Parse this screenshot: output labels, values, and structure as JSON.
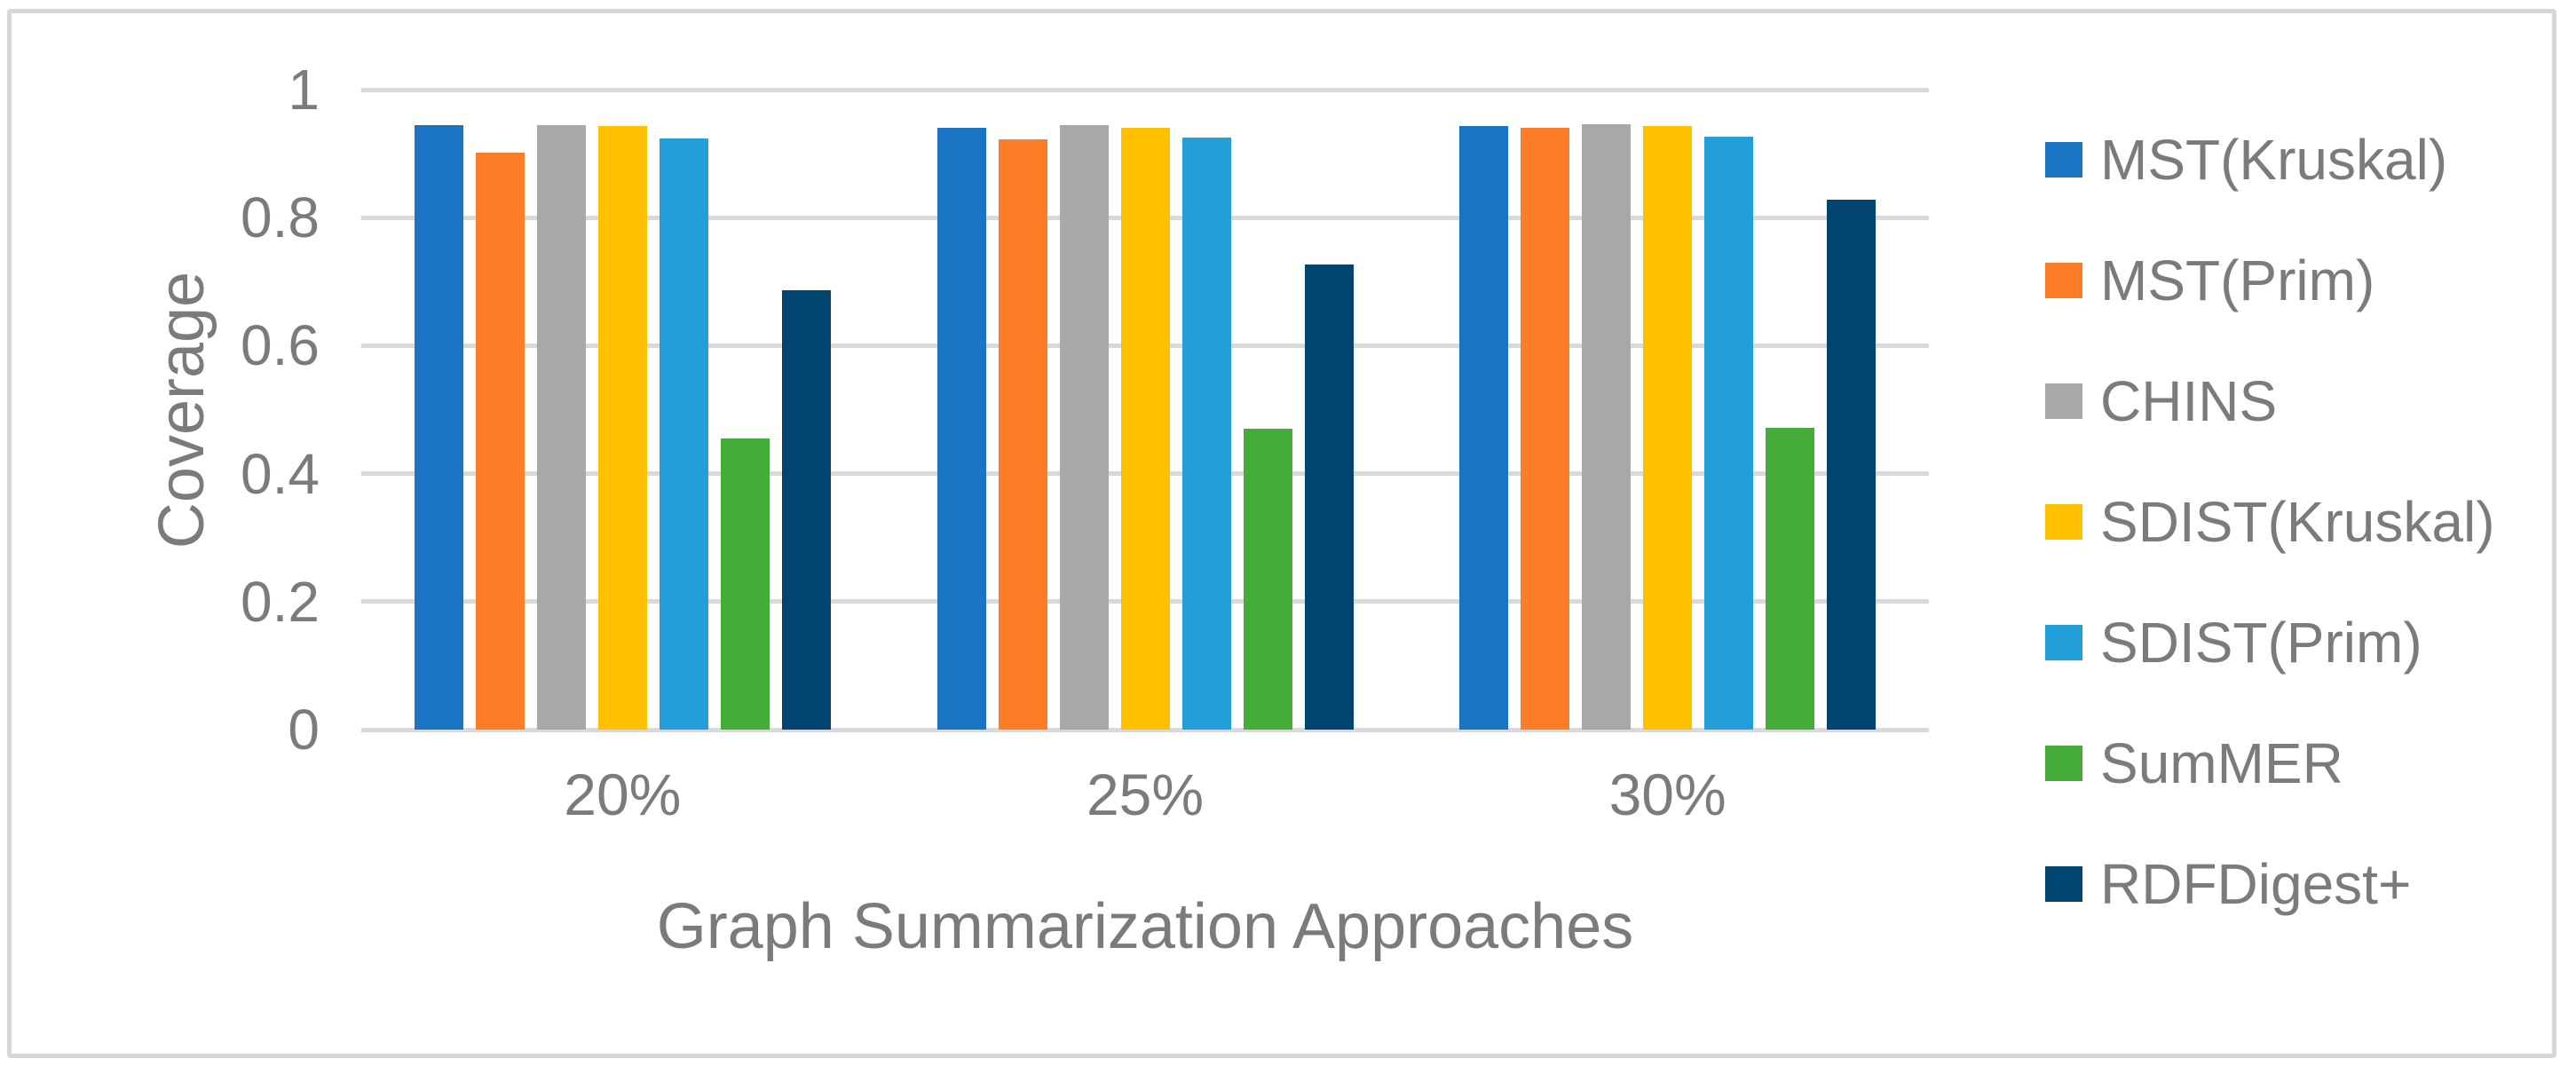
{
  "figure": {
    "background": "#ffffff",
    "border_color": "#d7d7d7"
  },
  "chart_data": {
    "type": "bar",
    "title": "",
    "xlabel": "Graph Summarization Approaches",
    "ylabel": "Coverage",
    "categories": [
      "20%",
      "25%",
      "30%"
    ],
    "series": [
      {
        "name": "MST(Kruskal)",
        "color": "#1b73c4",
        "values": [
          0.944,
          0.941,
          0.943
        ]
      },
      {
        "name": "MST(Prim)",
        "color": "#fb7d27",
        "values": [
          0.901,
          0.923,
          0.94
        ]
      },
      {
        "name": "CHINS",
        "color": "#a8a8a8",
        "values": [
          0.945,
          0.945,
          0.946
        ]
      },
      {
        "name": "SDIST(Kruskal)",
        "color": "#ffc000",
        "values": [
          0.943,
          0.941,
          0.943
        ]
      },
      {
        "name": "SDIST(Prim)",
        "color": "#229fd8",
        "values": [
          0.924,
          0.925,
          0.926
        ]
      },
      {
        "name": "SumMER",
        "color": "#45ac39",
        "values": [
          0.455,
          0.47,
          0.471
        ]
      },
      {
        "name": "RDFDigest+",
        "color": "#00456f",
        "values": [
          0.686,
          0.727,
          0.828
        ]
      }
    ],
    "ylim": [
      0,
      1
    ],
    "yticks": [
      0,
      0.2,
      0.4,
      0.6,
      0.8,
      1
    ],
    "ytick_labels": [
      "0",
      "0.2",
      "0.4",
      "0.6",
      "0.8",
      "1"
    ],
    "grid": true,
    "gridline_color": "#d9d9d9",
    "axis_text_color": "#7b7b7b",
    "legend_position": "right"
  }
}
